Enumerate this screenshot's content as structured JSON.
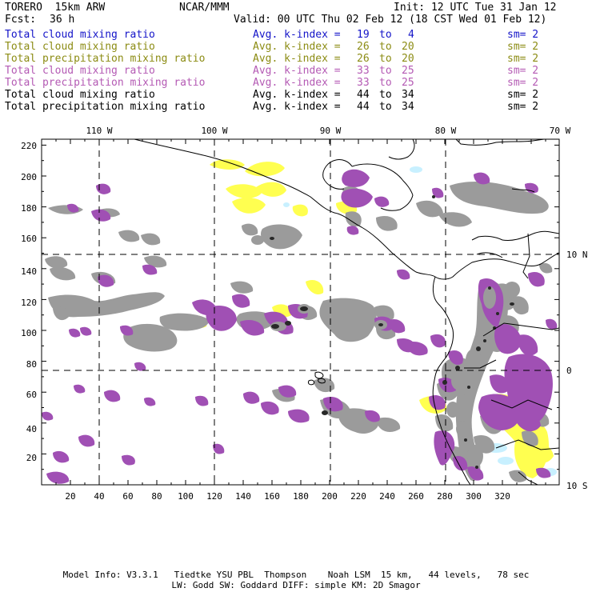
{
  "header": {
    "model": "TORERO  15km ARW",
    "org": "NCAR/MMM",
    "init": "Init: 12 UTC Tue 31 Jan 12",
    "fcst_label": "Fcst:",
    "fcst_value": "36 h",
    "valid": "Valid: 00 UTC Thu 02 Feb 12 (18 CST Wed 01 Feb 12)"
  },
  "legend": [
    {
      "name": "Total cloud mixing ratio",
      "index_label": "Avg. k-index =",
      "from": "19",
      "to_word": "to",
      "to": "4",
      "sm": "sm= 2",
      "color": "#1414c8"
    },
    {
      "name": "Total cloud mixing ratio",
      "index_label": "Avg. k-index =",
      "from": "26",
      "to_word": "to",
      "to": "20",
      "sm": "sm= 2",
      "color": "#8c8c14"
    },
    {
      "name": "Total precipitation mixing ratio",
      "index_label": "Avg. k-index =",
      "from": "26",
      "to_word": "to",
      "to": "20",
      "sm": "sm= 2",
      "color": "#8c8c14"
    },
    {
      "name": "Total cloud mixing ratio",
      "index_label": "Avg. k-index =",
      "from": "33",
      "to_word": "to",
      "to": "25",
      "sm": "sm= 2",
      "color": "#b45ab4"
    },
    {
      "name": "Total precipitation mixing ratio",
      "index_label": "Avg. k-index =",
      "from": "33",
      "to_word": "to",
      "to": "25",
      "sm": "sm= 2",
      "color": "#b45ab4"
    },
    {
      "name": "Total cloud mixing ratio",
      "index_label": "Avg. k-index =",
      "from": "44",
      "to_word": "to",
      "to": "34",
      "sm": "sm= 2",
      "color": "#000000"
    },
    {
      "name": "Total precipitation mixing ratio",
      "index_label": "Avg. k-index =",
      "from": "44",
      "to_word": "to",
      "to": "34",
      "sm": "sm= 2",
      "color": "#000000"
    }
  ],
  "map": {
    "x_ticks": [
      "20",
      "40",
      "60",
      "80",
      "100",
      "120",
      "140",
      "160",
      "180",
      "200",
      "220",
      "240",
      "260",
      "280",
      "300",
      "320"
    ],
    "y_ticks": [
      "20",
      "40",
      "60",
      "80",
      "100",
      "120",
      "140",
      "160",
      "180",
      "200",
      "220"
    ],
    "lon_labels": [
      "110 W",
      "100 W",
      "90 W",
      "80 W",
      "70 W"
    ],
    "lat_labels": [
      "10 N",
      "0",
      "10 S"
    ],
    "colors": {
      "gray": "#9b9b9b",
      "purple": "#a050b4",
      "yellow": "#ffff50",
      "cyan": "#c8f0ff",
      "dark": "#282828"
    }
  },
  "footer": {
    "line1": "Model Info: V3.3.1   Tiedtke YSU PBL  Thompson    Noah LSM  15 km,   44 levels,   78 sec",
    "line2": "LW: Godd SW: Goddard DIFF: simple KM: 2D Smagor"
  }
}
